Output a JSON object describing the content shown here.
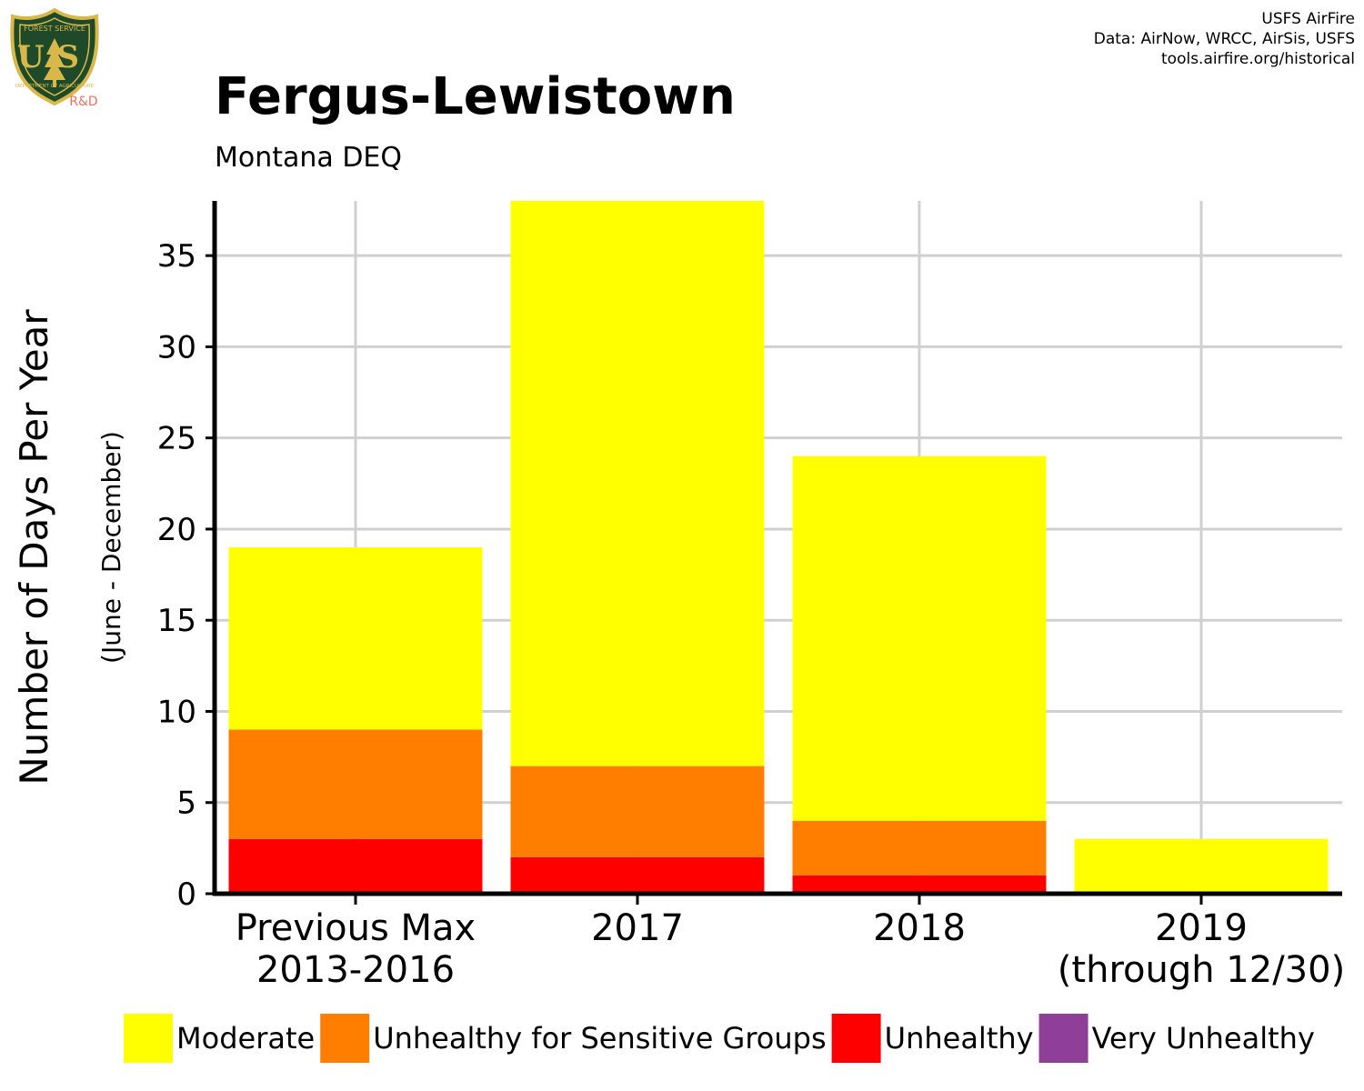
{
  "logo": {
    "text_top": "FOREST SERVICE",
    "text_main": "US",
    "text_bottom": "DEPARTMENT OF AGRICULTURE",
    "rd": "R&D"
  },
  "credits": {
    "line1": "USFS AirFire",
    "line2": "Data: AirNow, WRCC, AirSis, USFS",
    "line3": "tools.airfire.org/historical"
  },
  "chart_data": {
    "type": "bar",
    "stacked": true,
    "title": "Fergus-Lewistown",
    "subtitle": "Montana DEQ",
    "ylabel": "Number of Days Per Year",
    "ylabel_sub": "(June - December)",
    "xlabel": "",
    "ylim": [
      0,
      38
    ],
    "yticks": [
      0,
      5,
      10,
      15,
      20,
      25,
      30,
      35
    ],
    "grid": true,
    "legend_position": "bottom",
    "categories": [
      [
        "Previous Max",
        "2013-2016"
      ],
      [
        "2017"
      ],
      [
        "2018"
      ],
      [
        "2019",
        "(through 12/30)"
      ]
    ],
    "series": [
      {
        "name": "Unhealthy",
        "color": "#ff0000",
        "values": [
          3,
          2,
          1,
          0
        ]
      },
      {
        "name": "Unhealthy for Sensitive Groups",
        "color": "#ff7e00",
        "values": [
          6,
          5,
          3,
          0
        ]
      },
      {
        "name": "Moderate",
        "color": "#ffff00",
        "values": [
          10,
          31,
          20,
          3
        ]
      },
      {
        "name": "Very Unhealthy",
        "color": "#8f3f97",
        "values": [
          0,
          0,
          0,
          0
        ]
      }
    ],
    "legend_order": [
      "Moderate",
      "Unhealthy for Sensitive Groups",
      "Unhealthy",
      "Very Unhealthy"
    ]
  }
}
